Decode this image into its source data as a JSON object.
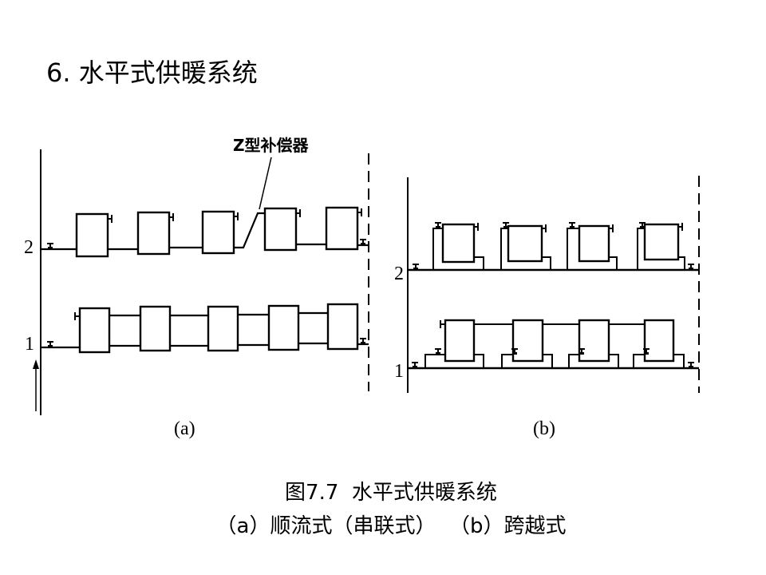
{
  "slide": {
    "title": "6. 水平式供暖系统"
  },
  "diagram": {
    "annotation": "Z型补偿器",
    "floor_labels_a": [
      "2",
      "1"
    ],
    "floor_labels_b": [
      "2",
      "1"
    ],
    "panel_a_label": "(a)",
    "panel_b_label": "(b)"
  },
  "caption": {
    "line1": "图7.7  水平式供暖系统",
    "line2": "（a）顺流式（串联式）  （b）跨越式"
  }
}
